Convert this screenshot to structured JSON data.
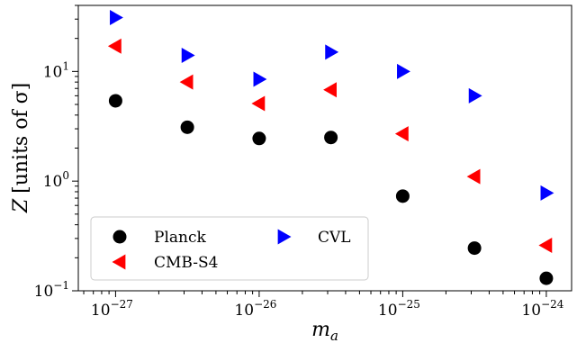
{
  "chart_data": {
    "type": "scatter",
    "xlabel": "m",
    "xlabel_sub": "a",
    "ylabel_var": "Z",
    "ylabel_units": "[units of σ]",
    "x_scale": "log",
    "y_scale": "log",
    "xlim": [
      5.5e-28,
      1.5e-24
    ],
    "ylim": [
      0.1,
      40
    ],
    "x_ticks": [
      1e-27,
      1e-26,
      1e-25,
      1e-24
    ],
    "x_tick_labels": [
      {
        "base": "10",
        "exp": "−27"
      },
      {
        "base": "10",
        "exp": "−26"
      },
      {
        "base": "10",
        "exp": "−25"
      },
      {
        "base": "10",
        "exp": "−24"
      }
    ],
    "y_ticks": [
      0.1,
      1,
      10
    ],
    "y_tick_labels": [
      {
        "base": "10",
        "exp": "−1"
      },
      {
        "base": "10",
        "exp": "0"
      },
      {
        "base": "10",
        "exp": "1"
      }
    ],
    "grid": false,
    "legend_position": "bottom-left",
    "series": [
      {
        "name": "Planck",
        "marker": "circle",
        "color": "#000000",
        "x": [
          1e-27,
          3.16e-27,
          1e-26,
          3.16e-26,
          1e-25,
          3.16e-25,
          1e-24
        ],
        "y": [
          5.4,
          3.1,
          2.45,
          2.5,
          0.73,
          0.245,
          0.13
        ]
      },
      {
        "name": "CMB-S4",
        "marker": "triangle-left",
        "color": "#ff0000",
        "x": [
          1e-27,
          3.16e-27,
          1e-26,
          3.16e-26,
          1e-25,
          3.16e-25,
          1e-24
        ],
        "y": [
          17,
          8,
          5.1,
          6.8,
          2.7,
          1.1,
          0.26
        ]
      },
      {
        "name": "CVL",
        "marker": "triangle-right",
        "color": "#0000ff",
        "x": [
          1e-27,
          3.16e-27,
          1e-26,
          3.16e-26,
          1e-25,
          3.16e-25,
          1e-24
        ],
        "y": [
          31,
          14,
          8.5,
          15,
          10,
          6,
          0.78
        ]
      }
    ]
  }
}
